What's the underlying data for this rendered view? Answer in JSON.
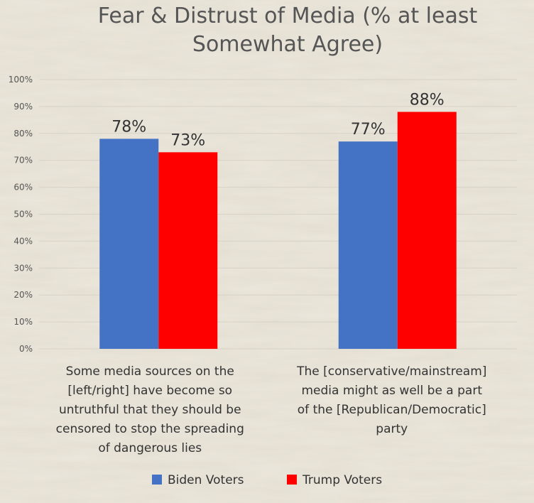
{
  "chart_data": {
    "type": "bar",
    "title_lines": [
      "Fear & Distrust of Media (% at least",
      "Somewhat Agree)"
    ],
    "categories": [
      "Some media sources on the [left/right] have become so untruthful that they should be censored to stop the spreading of dangerous lies",
      "The [conservative/mainstream] media might as well be a part of the [Republican/Democratic] party"
    ],
    "category_lines": [
      [
        "Some media sources on the",
        "[left/right] have become so",
        "untruthful that they should be",
        "censored to stop the spreading",
        "of dangerous lies"
      ],
      [
        "The [conservative/mainstream]",
        "media might as well be a part",
        "of the [Republican/Democratic]",
        "party"
      ]
    ],
    "series": [
      {
        "name": "Biden Voters",
        "values": [
          78,
          77
        ],
        "color": "#4472c4"
      },
      {
        "name": "Trump Voters",
        "values": [
          73,
          88
        ],
        "color": "#ff0000"
      }
    ],
    "data_labels": [
      [
        "78%",
        "77%"
      ],
      [
        "73%",
        "88%"
      ]
    ],
    "y_ticks": [
      0,
      10,
      20,
      30,
      40,
      50,
      60,
      70,
      80,
      90,
      100
    ],
    "y_tick_labels": [
      "0%",
      "10%",
      "20%",
      "30%",
      "40%",
      "50%",
      "60%",
      "70%",
      "80%",
      "90%",
      "100%"
    ],
    "ylim": [
      0,
      100
    ],
    "grid": true,
    "legend_position": "bottom"
  }
}
